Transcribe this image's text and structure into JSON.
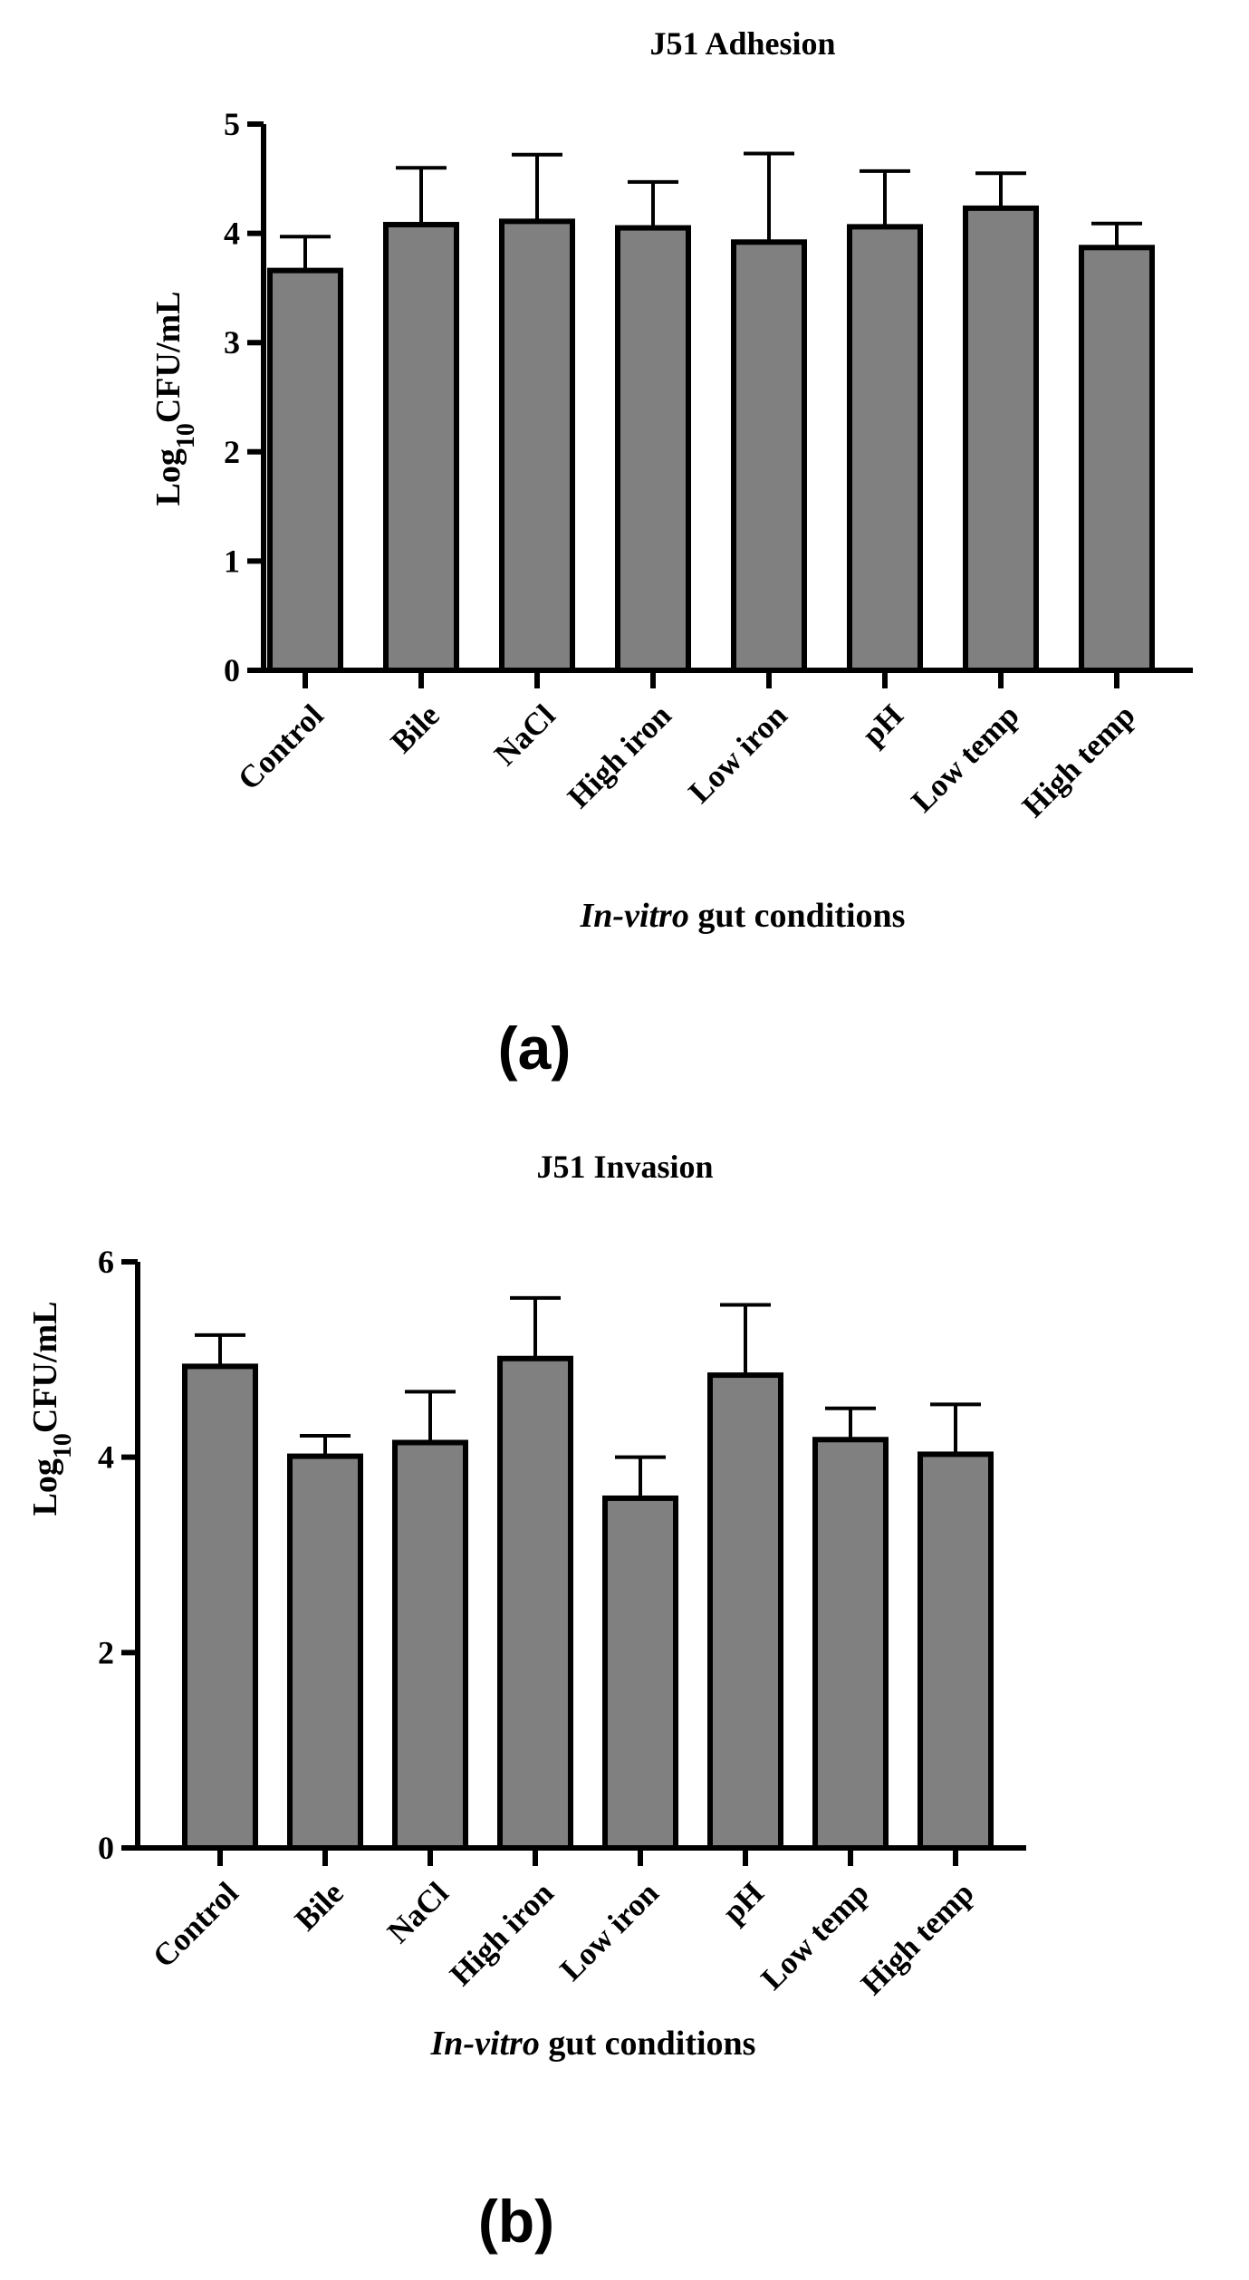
{
  "chart_data": [
    {
      "type": "bar",
      "title": "J51 Adhesion",
      "panel_label": "(a)",
      "ylabel_main": "Log",
      "ylabel_sub": "10",
      "ylabel_rest": "CFU/mL",
      "xlabel_italic": "In-vitro",
      "xlabel_rest": " gut conditions",
      "ylim": [
        0,
        5
      ],
      "yticks": [
        0,
        1,
        2,
        3,
        4,
        5
      ],
      "categories": [
        "Control",
        "Bile",
        "NaCl",
        "High iron",
        "Low iron",
        "pH",
        "Low temp",
        "High temp"
      ],
      "values": [
        3.66,
        4.08,
        4.11,
        4.05,
        3.92,
        4.06,
        4.23,
        3.87
      ],
      "error_upper": [
        0.31,
        0.52,
        0.61,
        0.42,
        0.81,
        0.51,
        0.32,
        0.22
      ],
      "bar_color": "#808080"
    },
    {
      "type": "bar",
      "title": "J51 Invasion",
      "panel_label": "(b)",
      "ylabel_main": "Log",
      "ylabel_sub": "10",
      "ylabel_rest": "CFU/mL",
      "xlabel_italic": "In-vitro",
      "xlabel_rest": " gut conditions",
      "ylim": [
        0,
        6
      ],
      "yticks": [
        0,
        2,
        4,
        6
      ],
      "categories": [
        "Control",
        "Bile",
        "NaCl",
        "High iron",
        "Low iron",
        "pH",
        "Low temp",
        "High temp"
      ],
      "values": [
        4.93,
        4.01,
        4.15,
        5.01,
        3.58,
        4.84,
        4.18,
        4.03
      ],
      "error_upper": [
        0.32,
        0.21,
        0.52,
        0.62,
        0.42,
        0.72,
        0.32,
        0.51
      ],
      "bar_color": "#808080"
    }
  ]
}
